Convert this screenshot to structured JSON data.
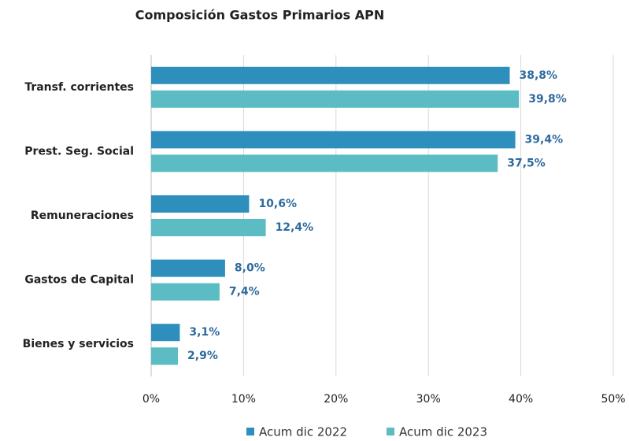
{
  "chart_data": {
    "type": "hbar",
    "title": "Composición Gastos Primarios APN",
    "categories": [
      "Transf. corrientes",
      "Prest. Seg. Social",
      "Remuneraciones",
      "Gastos de Capital",
      "Bienes y servicios"
    ],
    "series": [
      {
        "name": "Acum dic 2022",
        "color": "#2e8fbd",
        "values": [
          38.8,
          39.4,
          10.6,
          8.0,
          3.1
        ],
        "value_labels": [
          "38,8%",
          "39,4%",
          "10,6%",
          "8,0%",
          "3,1%"
        ]
      },
      {
        "name": "Acum dic 2023",
        "color": "#5bbcc4",
        "values": [
          39.8,
          37.5,
          12.4,
          7.4,
          2.9
        ],
        "value_labels": [
          "39,8%",
          "37,5%",
          "12,4%",
          "7,4%",
          "2,9%"
        ]
      }
    ],
    "xlim": [
      0,
      50
    ],
    "xticks": [
      {
        "value": 0,
        "label": "0%"
      },
      {
        "value": 10,
        "label": "10%"
      },
      {
        "value": 20,
        "label": "20%"
      },
      {
        "value": 30,
        "label": "30%"
      },
      {
        "value": 40,
        "label": "40%"
      },
      {
        "value": 50,
        "label": "50%"
      }
    ],
    "grid": true,
    "legend": "bottom"
  }
}
